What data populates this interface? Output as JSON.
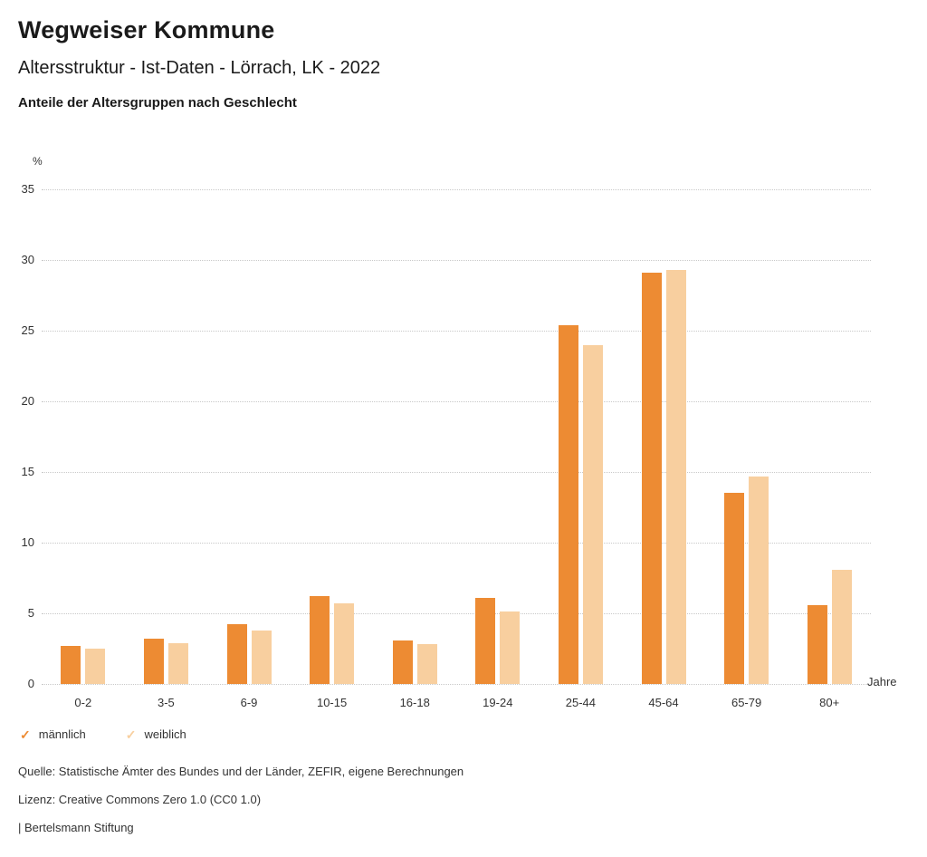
{
  "header": {
    "title": "Wegweiser Kommune",
    "subtitle": "Altersstruktur - Ist-Daten - Lörrach, LK - 2022",
    "chart_heading": "Anteile der Altersgruppen nach Geschlecht"
  },
  "chart_data": {
    "type": "bar",
    "title": "Anteile der Altersgruppen nach Geschlecht",
    "categories": [
      "0-2",
      "3-5",
      "6-9",
      "10-15",
      "16-18",
      "19-24",
      "25-44",
      "45-64",
      "65-79",
      "80+"
    ],
    "series": [
      {
        "name": "männlich",
        "color": "#ED8B33",
        "values": [
          2.7,
          3.2,
          4.2,
          6.2,
          3.1,
          6.1,
          25.4,
          29.1,
          13.5,
          5.6
        ]
      },
      {
        "name": "weiblich",
        "color": "#F8CF9F",
        "values": [
          2.5,
          2.9,
          3.8,
          5.7,
          2.8,
          5.1,
          24.0,
          29.3,
          14.7,
          8.1
        ]
      }
    ],
    "ylabel": "%",
    "xlabel": "Jahre",
    "ylim": [
      0,
      35
    ],
    "yticks": [
      0,
      5,
      10,
      15,
      20,
      25,
      30,
      35
    ],
    "grid": true,
    "legend_position": "bottom"
  },
  "legend": {
    "check_icon": "✓"
  },
  "footer": {
    "source": "Quelle: Statistische Ämter des Bundes und der Länder, ZEFIR, eigene Berechnungen",
    "license": "Lizenz: Creative Commons Zero 1.0 (CC0 1.0)",
    "attribution": "| Bertelsmann Stiftung"
  }
}
